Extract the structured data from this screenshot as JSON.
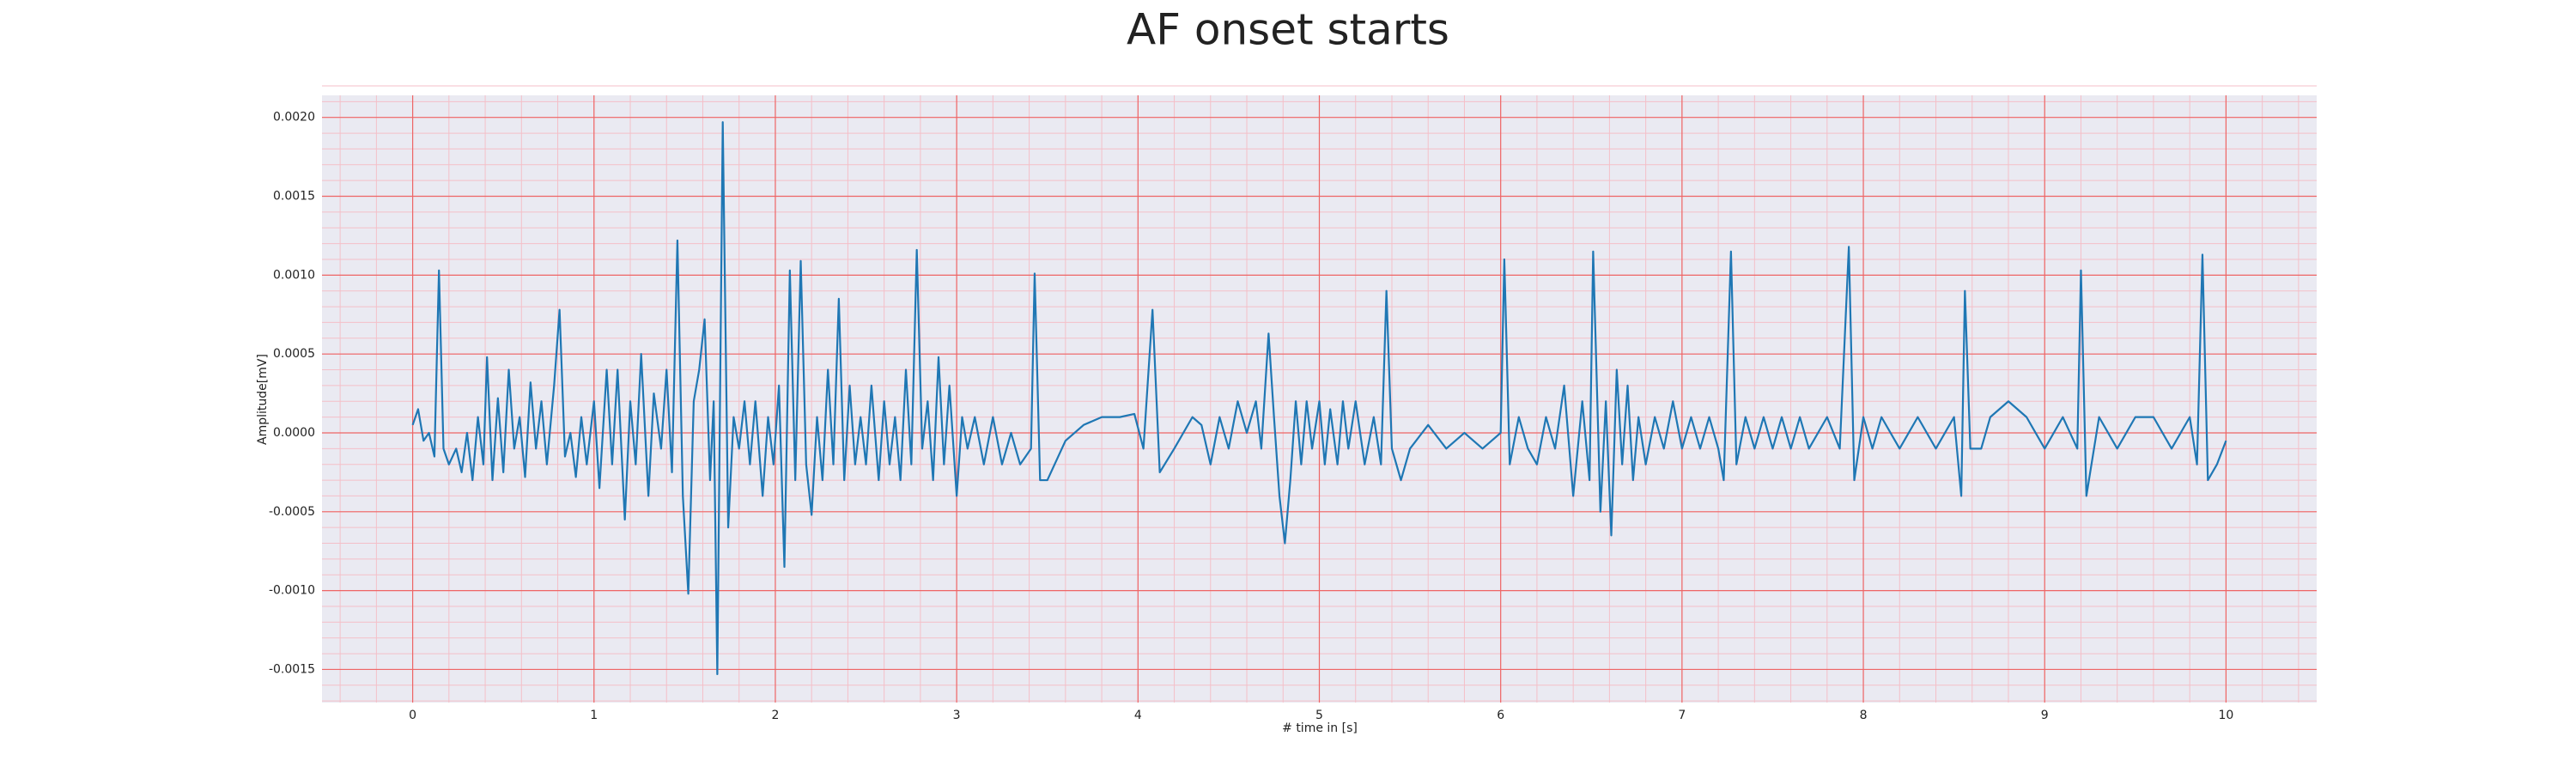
{
  "chart_data": {
    "type": "line",
    "title": "AF onset starts",
    "xlabel": "# time in [s]",
    "ylabel": "Amplitude[mV]",
    "color": "#1f77b4",
    "grid": true,
    "minor_grid": true,
    "xlim": [
      -0.5,
      10.5
    ],
    "xticks": [
      0,
      1,
      2,
      3,
      4,
      5,
      6,
      7,
      8,
      9,
      10
    ],
    "ylim": [
      -0.00171,
      0.00214
    ],
    "yticks": [
      {
        "value": -0.0015,
        "label": "-0.0015"
      },
      {
        "value": -0.001,
        "label": "-0.0010"
      },
      {
        "value": -0.0005,
        "label": "-0.0005"
      },
      {
        "value": 0,
        "label": "0.0000"
      },
      {
        "value": 0.0005,
        "label": "0.0005"
      },
      {
        "value": 0.001,
        "label": "0.0010"
      },
      {
        "value": 0.0015,
        "label": "0.0015"
      },
      {
        "value": 0.002,
        "label": "0.0020"
      }
    ],
    "x": [
      0,
      0.03,
      0.06,
      0.09,
      0.12,
      0.145,
      0.17,
      0.2,
      0.24,
      0.27,
      0.3,
      0.33,
      0.36,
      0.39,
      0.41,
      0.44,
      0.47,
      0.5,
      0.53,
      0.56,
      0.59,
      0.62,
      0.65,
      0.68,
      0.71,
      0.74,
      0.78,
      0.81,
      0.84,
      0.87,
      0.9,
      0.93,
      0.96,
      1,
      1.03,
      1.07,
      1.1,
      1.13,
      1.17,
      1.2,
      1.23,
      1.26,
      1.3,
      1.33,
      1.37,
      1.4,
      1.43,
      1.46,
      1.49,
      1.52,
      1.55,
      1.58,
      1.61,
      1.64,
      1.66,
      1.68,
      1.71,
      1.74,
      1.77,
      1.8,
      1.83,
      1.86,
      1.89,
      1.93,
      1.96,
      1.99,
      2.02,
      2.05,
      2.08,
      2.11,
      2.14,
      2.17,
      2.2,
      2.23,
      2.26,
      2.29,
      2.32,
      2.35,
      2.38,
      2.41,
      2.44,
      2.47,
      2.5,
      2.53,
      2.57,
      2.6,
      2.63,
      2.66,
      2.69,
      2.72,
      2.75,
      2.78,
      2.81,
      2.84,
      2.87,
      2.9,
      2.93,
      2.96,
      3,
      3.03,
      3.06,
      3.1,
      3.15,
      3.2,
      3.25,
      3.3,
      3.35,
      3.41,
      3.43,
      3.46,
      3.5,
      3.6,
      3.7,
      3.8,
      3.9,
      3.98,
      4.03,
      4.08,
      4.12,
      4.2,
      4.3,
      4.35,
      4.4,
      4.45,
      4.5,
      4.55,
      4.6,
      4.65,
      4.68,
      4.72,
      4.75,
      4.78,
      4.81,
      4.84,
      4.87,
      4.9,
      4.93,
      4.96,
      5,
      5.03,
      5.06,
      5.1,
      5.13,
      5.16,
      5.2,
      5.25,
      5.3,
      5.34,
      5.37,
      5.4,
      5.45,
      5.5,
      5.6,
      5.7,
      5.8,
      5.9,
      6,
      6.02,
      6.05,
      6.1,
      6.15,
      6.2,
      6.25,
      6.3,
      6.35,
      6.4,
      6.45,
      6.49,
      6.51,
      6.55,
      6.58,
      6.61,
      6.64,
      6.67,
      6.7,
      6.73,
      6.76,
      6.8,
      6.85,
      6.9,
      6.95,
      7,
      7.05,
      7.1,
      7.15,
      7.2,
      7.23,
      7.27,
      7.3,
      7.35,
      7.4,
      7.45,
      7.5,
      7.55,
      7.6,
      7.65,
      7.7,
      7.8,
      7.87,
      7.92,
      7.95,
      8,
      8.05,
      8.1,
      8.2,
      8.3,
      8.4,
      8.5,
      8.54,
      8.56,
      8.59,
      8.65,
      8.7,
      8.8,
      8.9,
      9,
      9.1,
      9.18,
      9.2,
      9.23,
      9.3,
      9.4,
      9.5,
      9.6,
      9.7,
      9.8,
      9.84,
      9.87,
      9.9,
      9.95,
      10
    ],
    "values": [
      5e-05,
      0.00015,
      -5e-05,
      0,
      -0.00015,
      0.00103,
      -0.0001,
      -0.0002,
      -0.0001,
      -0.00025,
      0,
      -0.0003,
      0.0001,
      -0.0002,
      0.00048,
      -0.0003,
      0.00022,
      -0.00025,
      0.0004,
      -0.0001,
      0.0001,
      -0.00028,
      0.00032,
      -0.0001,
      0.0002,
      -0.0002,
      0.0003,
      0.00078,
      -0.00015,
      0,
      -0.00028,
      0.0001,
      -0.0002,
      0.0002,
      -0.00035,
      0.0004,
      -0.0002,
      0.0004,
      -0.00055,
      0.0002,
      -0.0002,
      0.0005,
      -0.0004,
      0.00025,
      -0.0001,
      0.0004,
      -0.00025,
      0.00122,
      -0.0004,
      -0.00102,
      0.0002,
      0.0004,
      0.00072,
      -0.0003,
      0.0002,
      -0.00153,
      0.00197,
      -0.0006,
      0.0001,
      -0.0001,
      0.0002,
      -0.0002,
      0.0002,
      -0.0004,
      0.0001,
      -0.0002,
      0.0003,
      -0.00085,
      0.00103,
      -0.0003,
      0.00109,
      -0.0002,
      -0.00052,
      0.0001,
      -0.0003,
      0.0004,
      -0.0002,
      0.00085,
      -0.0003,
      0.0003,
      -0.0002,
      0.0001,
      -0.0002,
      0.0003,
      -0.0003,
      0.0002,
      -0.0002,
      0.0001,
      -0.0003,
      0.0004,
      -0.0002,
      0.00116,
      -0.0001,
      0.0002,
      -0.0003,
      0.00048,
      -0.0002,
      0.0003,
      -0.0004,
      0.0001,
      -0.0001,
      0.0001,
      -0.0002,
      0.0001,
      -0.0002,
      0,
      -0.0002,
      -0.0001,
      0.00101,
      -0.0003,
      -0.0003,
      -5e-05,
      5e-05,
      0.0001,
      0.0001,
      0.00012,
      -0.0001,
      0.00078,
      -0.00025,
      -0.0001,
      0.0001,
      5e-05,
      -0.0002,
      0.0001,
      -0.0001,
      0.0002,
      0,
      0.0002,
      -0.0001,
      0.00063,
      0.0001,
      -0.0004,
      -0.0007,
      -0.0003,
      0.0002,
      -0.0002,
      0.0002,
      -0.0001,
      0.0002,
      -0.0002,
      0.00015,
      -0.0002,
      0.0002,
      -0.0001,
      0.0002,
      -0.0002,
      0.0001,
      -0.0002,
      0.0009,
      -0.0001,
      -0.0003,
      -0.0001,
      5e-05,
      -0.0001,
      0,
      -0.0001,
      0,
      0.0011,
      -0.0002,
      0.0001,
      -0.0001,
      -0.0002,
      0.0001,
      -0.0001,
      0.0003,
      -0.0004,
      0.0002,
      -0.0003,
      0.00115,
      -0.0005,
      0.0002,
      -0.00065,
      0.0004,
      -0.0002,
      0.0003,
      -0.0003,
      0.0001,
      -0.0002,
      0.0001,
      -0.0001,
      0.0002,
      -0.0001,
      0.0001,
      -0.0001,
      0.0001,
      -0.0001,
      -0.0003,
      0.00115,
      -0.0002,
      0.0001,
      -0.0001,
      0.0001,
      -0.0001,
      0.0001,
      -0.0001,
      0.0001,
      -0.0001,
      0.0001,
      -0.0001,
      0.00118,
      -0.0003,
      0.0001,
      -0.0001,
      0.0001,
      -0.0001,
      0.0001,
      -0.0001,
      0.0001,
      -0.0004,
      0.0009,
      -0.0001,
      -0.0001,
      0.0001,
      0.0002,
      0.0001,
      -0.0001,
      0.0001,
      -0.0001,
      0.00103,
      -0.0004,
      0.0001,
      -0.0001,
      0.0001,
      0.0001,
      -0.0001,
      0.0001,
      -0.0002,
      0.00113,
      -0.0003,
      -0.0002,
      -5e-05
    ]
  }
}
